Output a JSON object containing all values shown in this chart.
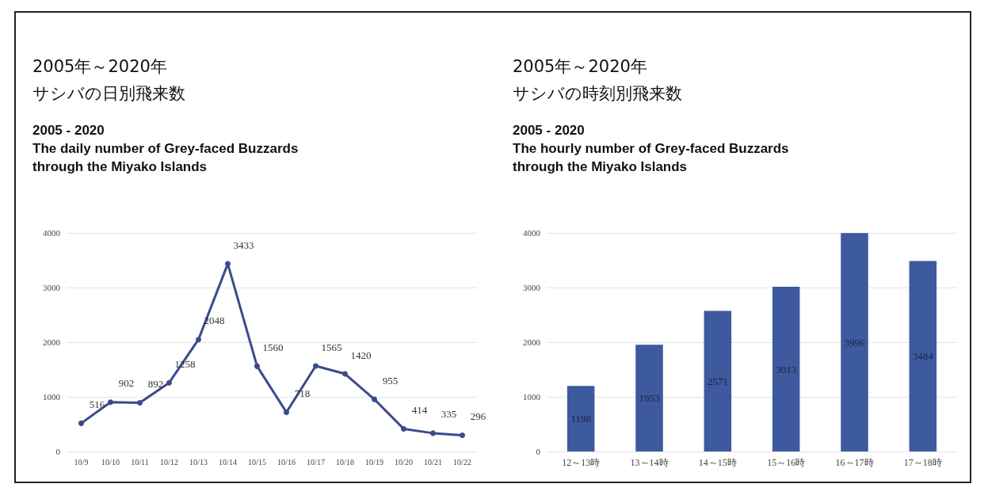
{
  "chart_data": [
    {
      "type": "line",
      "title": "2005年～2020年サシバの日別飛来数",
      "subtitle": "2005 - 2020\nThe daily number of Grey-faced Buzzards\nthrough the Miyako Islands",
      "categories": [
        "10/9",
        "10/10",
        "10/11",
        "10/12",
        "10/13",
        "10/14",
        "10/15",
        "10/16",
        "10/17",
        "10/18",
        "10/19",
        "10/20",
        "10/21",
        "10/22"
      ],
      "series": [
        {
          "color": "#3b4a8c",
          "values": [
            516,
            902,
            892,
            1258,
            2048,
            3433,
            1560,
            718,
            1565,
            1420,
            955,
            414,
            335,
            296
          ]
        }
      ],
      "ylim": [
        0,
        4000
      ],
      "yticks": [
        0,
        1000,
        2000,
        3000,
        4000
      ],
      "grid": "y",
      "marker": "circle",
      "line_style": "solid",
      "data_labels": true
    },
    {
      "type": "bar",
      "title": "2005年～2020年サシバの時刻別飛来数",
      "subtitle": "2005 - 2020\nThe hourly number of Grey-faced Buzzards\nthrough the Miyako Islands",
      "categories": [
        "12～13時",
        "13～14時",
        "14～15時",
        "15～16時",
        "16～17時",
        "17～18時"
      ],
      "series": [
        {
          "color": "#3d5a9e",
          "values": [
            1198,
            1953,
            2571,
            3013,
            3996,
            3484
          ]
        }
      ],
      "ylim": [
        0,
        4000
      ],
      "yticks": [
        0,
        1000,
        2000,
        3000,
        4000
      ],
      "grid": "y",
      "data_labels": true
    }
  ]
}
